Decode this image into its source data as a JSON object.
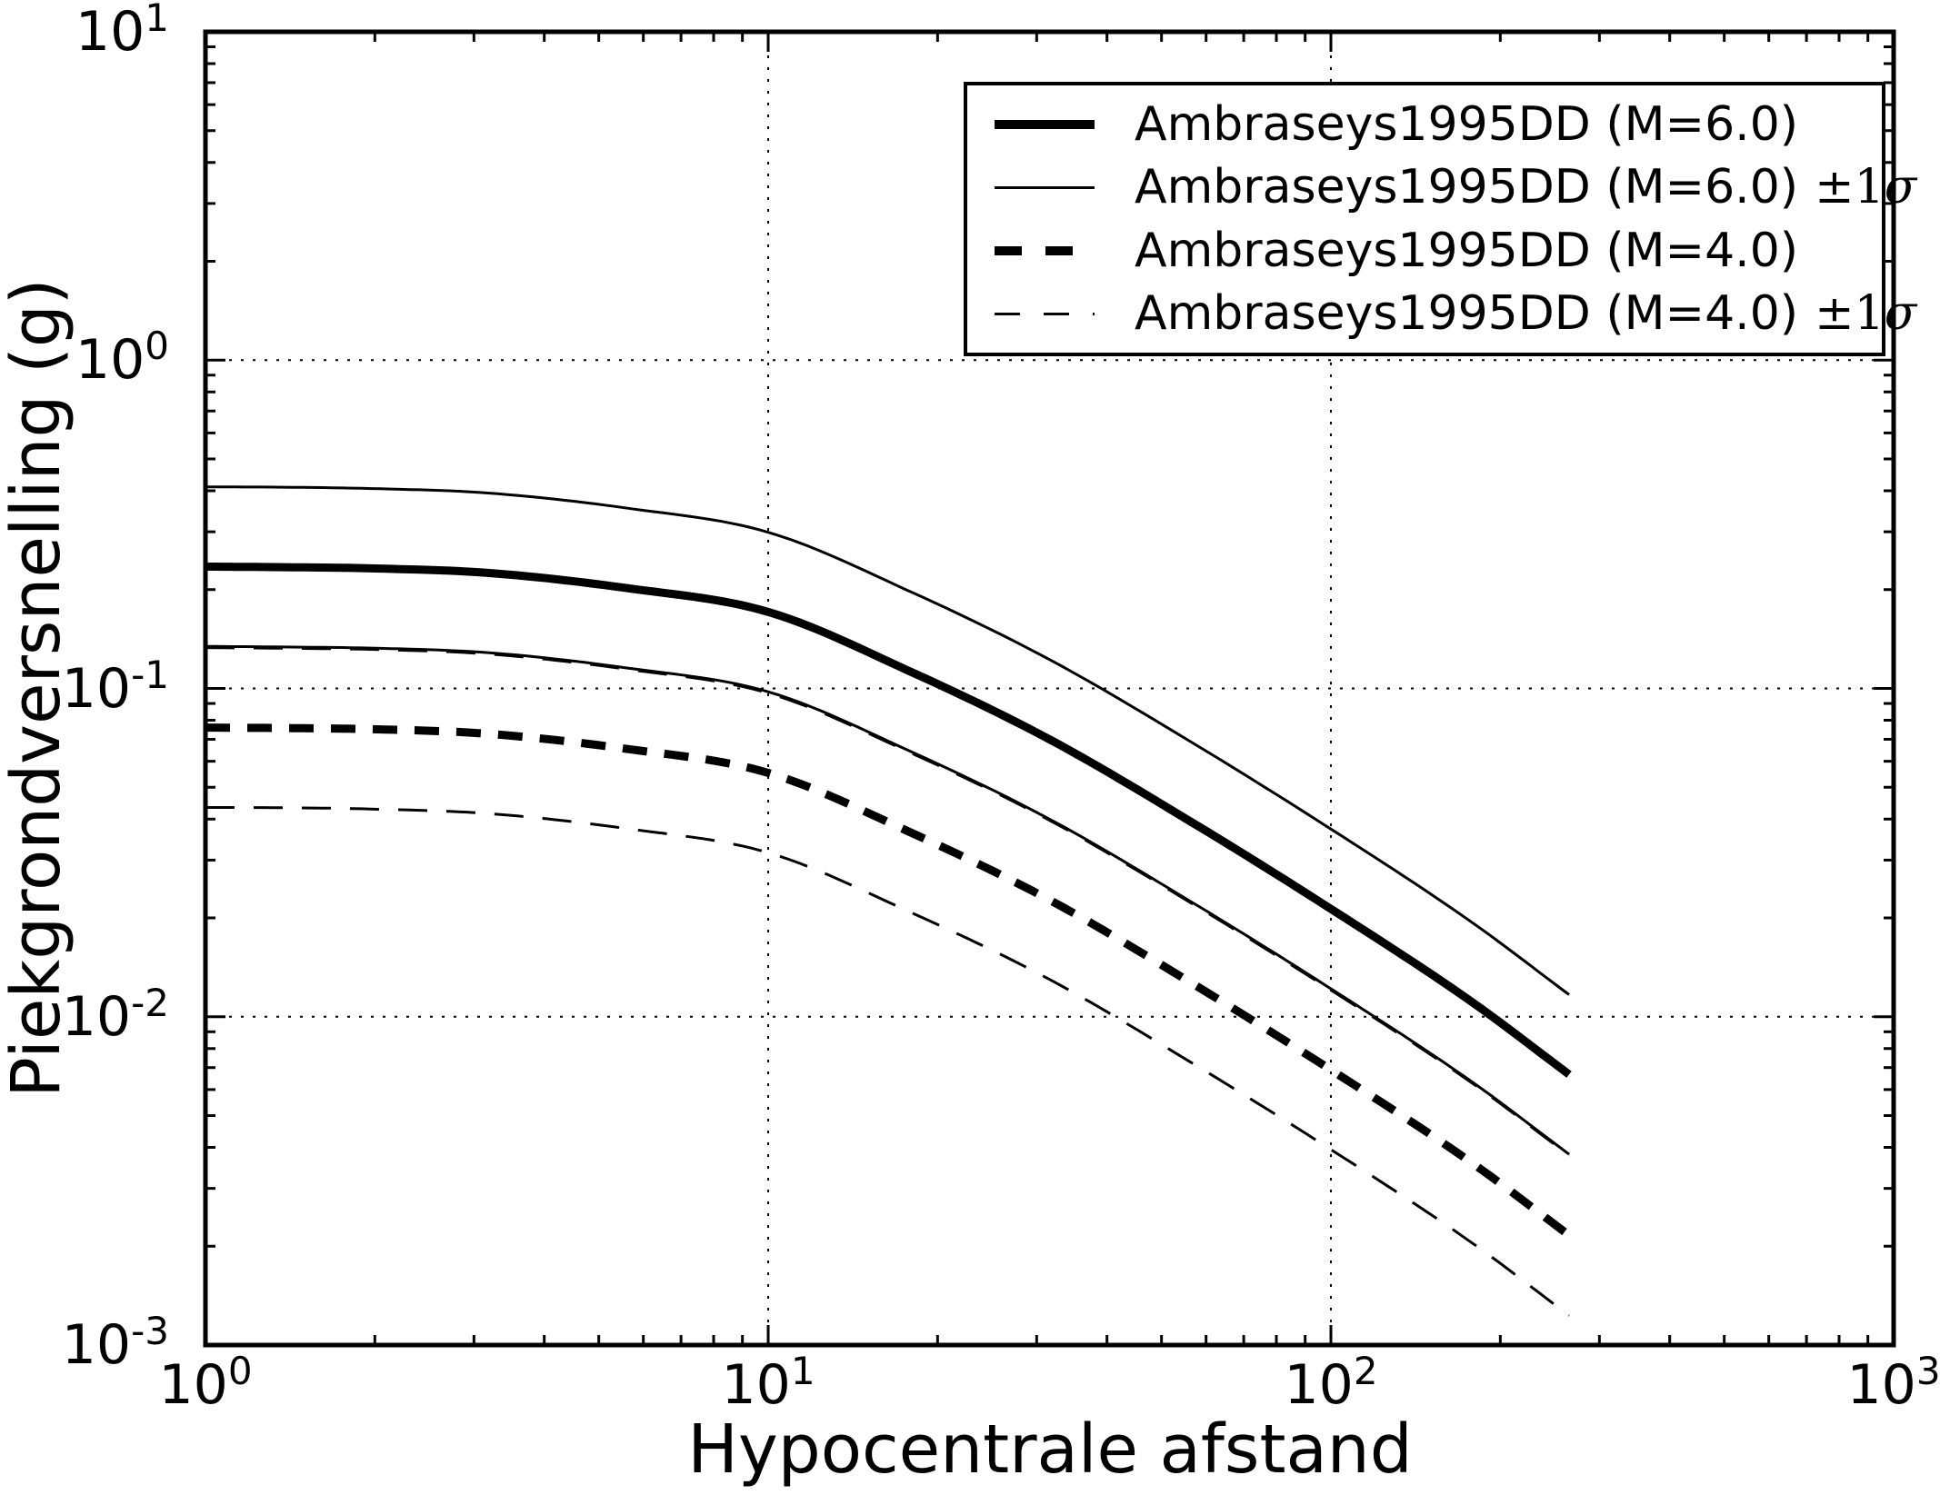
{
  "chart_data": {
    "type": "line",
    "title": "",
    "xlabel": "Hypocentrale afstand",
    "ylabel": "Piekgrondversnelling (g)",
    "x_scale": "log",
    "y_scale": "log",
    "xlim": [
      1,
      1000
    ],
    "ylim": [
      0.001,
      10
    ],
    "grid": {
      "x_values": [
        10,
        100
      ],
      "y_values": [
        1,
        0.1,
        0.01
      ],
      "style": "dotted"
    },
    "x_tick_exponents": [
      0,
      1,
      2,
      3
    ],
    "y_tick_exponents": [
      1,
      0,
      -1,
      -2,
      -3
    ],
    "legend_position": "upper right",
    "x": [
      1,
      1.41,
      2,
      3.16,
      5.62,
      10,
      17.8,
      31.6,
      56.2,
      100,
      178,
      265
    ],
    "series": [
      {
        "name": "Ambraseys1995DD (M=6.0)",
        "style": "thick-solid",
        "values": [
          0.235,
          0.234,
          0.232,
          0.225,
          0.202,
          0.171,
          0.113,
          0.07,
          0.0394,
          0.0213,
          0.0111,
          0.00667
        ]
      },
      {
        "name": "Ambraseys1995DD (M=6.0) ±1σ",
        "style": "thin-solid",
        "upper": [
          0.411,
          0.41,
          0.406,
          0.394,
          0.354,
          0.299,
          0.198,
          0.1225,
          0.069,
          0.0373,
          0.0194,
          0.01167
        ],
        "lower": [
          0.1343,
          0.1337,
          0.1326,
          0.1286,
          0.1154,
          0.0977,
          0.0646,
          0.04,
          0.0225,
          0.01217,
          0.00634,
          0.00381
        ]
      },
      {
        "name": "Ambraseys1995DD (M=4.0)",
        "style": "thick-dashed",
        "values": [
          0.076,
          0.0757,
          0.0751,
          0.0728,
          0.0654,
          0.0553,
          0.0366,
          0.0227,
          0.01275,
          0.00689,
          0.00359,
          0.00216
        ]
      },
      {
        "name": "Ambraseys1995DD (M=4.0) ±1σ",
        "style": "thin-dashed",
        "upper": [
          0.1331,
          0.1325,
          0.1314,
          0.1274,
          0.1144,
          0.0968,
          0.064,
          0.0397,
          0.0223,
          0.01206,
          0.00629,
          0.00378
        ],
        "lower": [
          0.0434,
          0.0433,
          0.0429,
          0.0416,
          0.0374,
          0.0316,
          0.0209,
          0.013,
          0.00729,
          0.00394,
          0.00205,
          0.00123
        ]
      }
    ]
  },
  "legend": {
    "rows": [
      {
        "style": "thick-solid",
        "label": "Ambraseys1995DD (M=6.0)",
        "math_suffix": ""
      },
      {
        "style": "thin-solid",
        "label": "Ambraseys1995DD (M=6.0)",
        "math_suffix": "±1σ"
      },
      {
        "style": "thick-dashed",
        "label": "Ambraseys1995DD (M=4.0)",
        "math_suffix": ""
      },
      {
        "style": "thin-dashed",
        "label": "Ambraseys1995DD (M=4.0)",
        "math_suffix": "±1σ"
      }
    ]
  }
}
